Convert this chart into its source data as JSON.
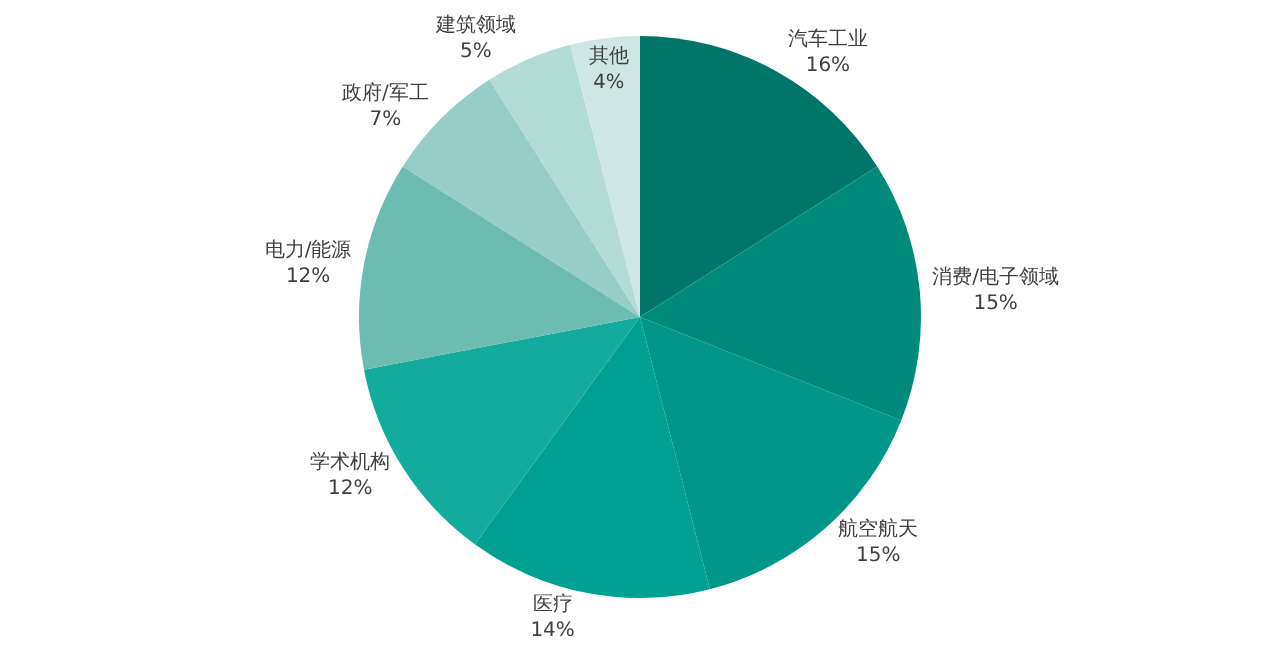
{
  "chart_data": {
    "type": "pie",
    "categories": [
      "汽车工业",
      "消费/电子领域",
      "航空航天",
      "医疗",
      "学术机构",
      "电力/能源",
      "政府/军工",
      "建筑领域",
      "其他"
    ],
    "values": [
      16,
      15,
      15,
      14,
      12,
      12,
      7,
      5,
      4
    ],
    "value_labels": [
      "16%",
      "15%",
      "15%",
      "14%",
      "12%",
      "12%",
      "7%",
      "5%",
      "4%"
    ],
    "colors": [
      "#00766a",
      "#008a7c",
      "#00968a",
      "#00a093",
      "#12ab9d",
      "#6dbcb2",
      "#96cdc6",
      "#b3dbd6",
      "#cfe7e4"
    ],
    "legend": false
  }
}
